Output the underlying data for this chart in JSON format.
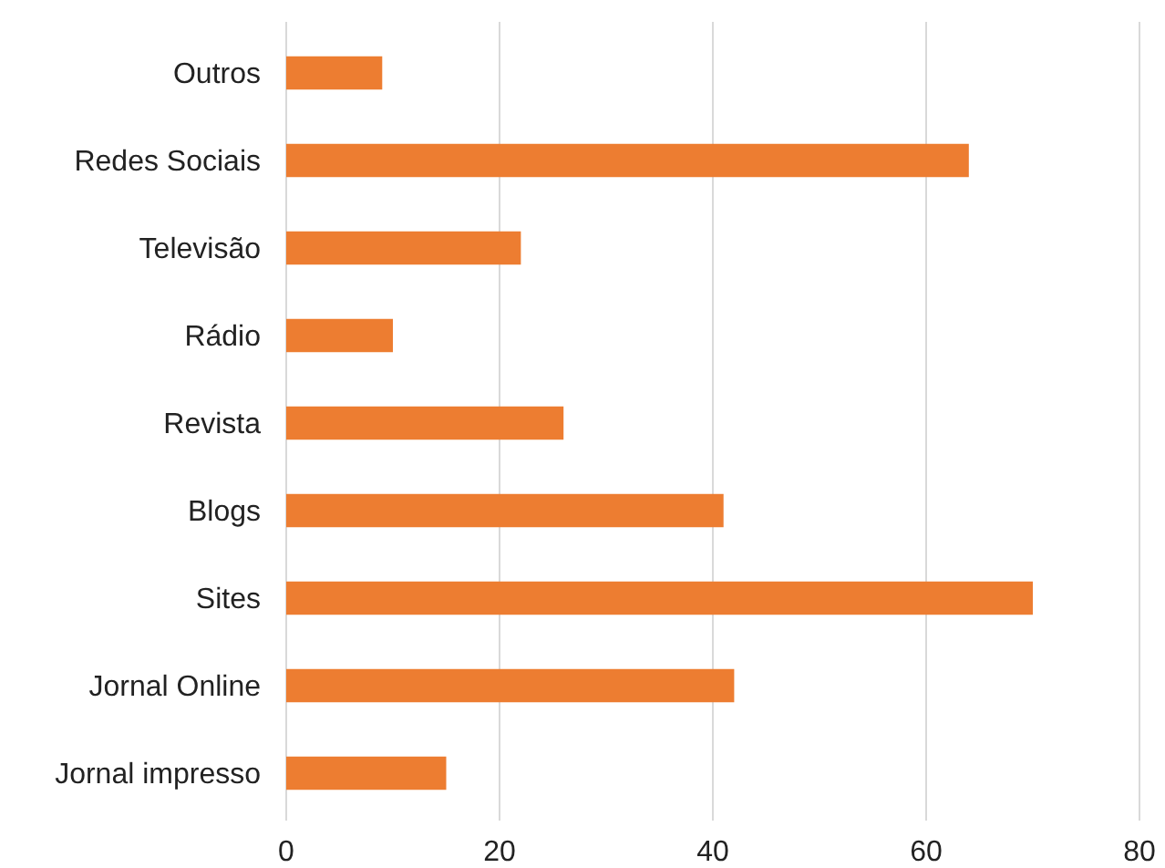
{
  "chart_data": {
    "type": "bar",
    "orientation": "horizontal",
    "categories": [
      "Outros",
      "Redes Sociais",
      "Televisão",
      "Rádio",
      "Revista",
      "Blogs",
      "Sites",
      "Jornal Online",
      "Jornal impresso"
    ],
    "values": [
      9,
      64,
      22,
      10,
      26,
      41,
      70,
      42,
      15
    ],
    "color": "#ed7d31",
    "xlim": [
      0,
      80
    ],
    "xticks": [
      0,
      20,
      40,
      60,
      80
    ],
    "grid": "x"
  }
}
